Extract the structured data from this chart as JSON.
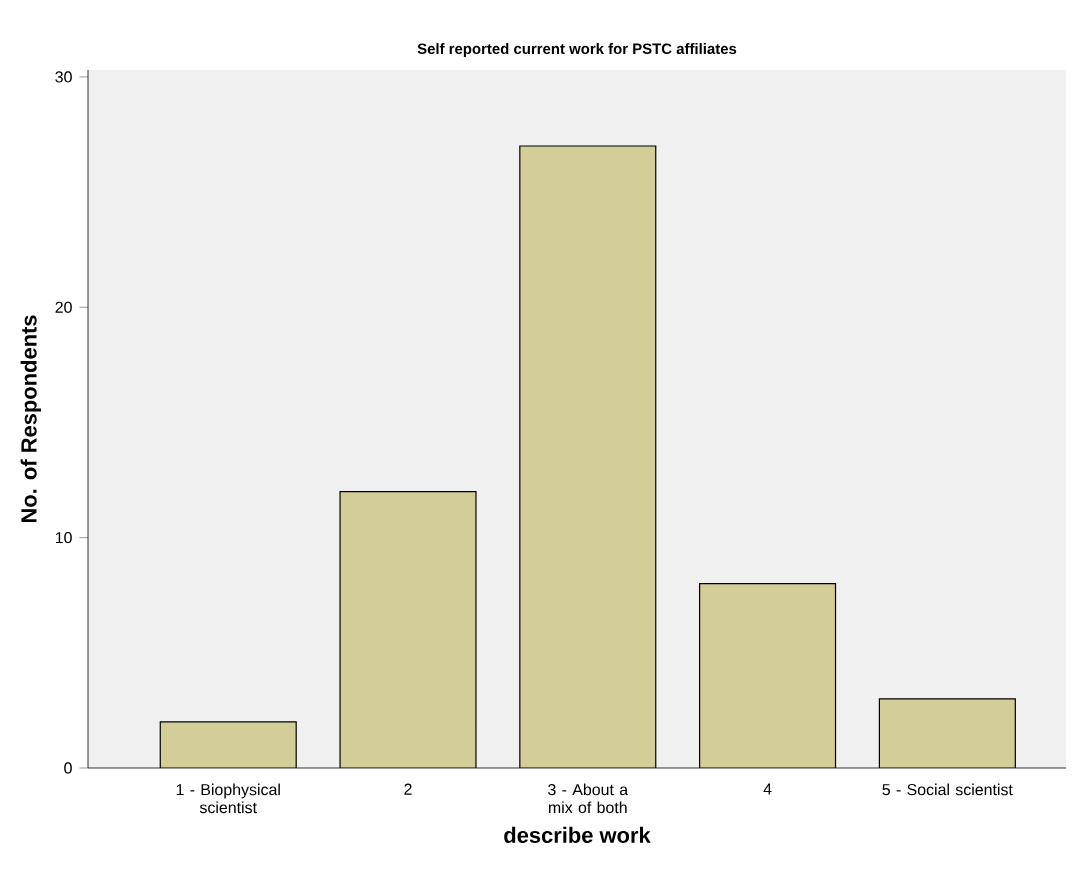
{
  "chart_data": {
    "type": "bar",
    "title": "Self reported current work for  PSTC affiliates",
    "xlabel": "describe work",
    "ylabel": "No. of Respondents",
    "categories": [
      "1 - Biophysical scientist",
      "2",
      "3 - About a mix of both",
      "4",
      "5 - Social scientist"
    ],
    "values": [
      2,
      12,
      27,
      8,
      3
    ],
    "color": "#d3ce98",
    "ylim": [
      0,
      30.3
    ],
    "yticks": [
      0,
      10,
      20,
      30
    ],
    "grid": false
  }
}
